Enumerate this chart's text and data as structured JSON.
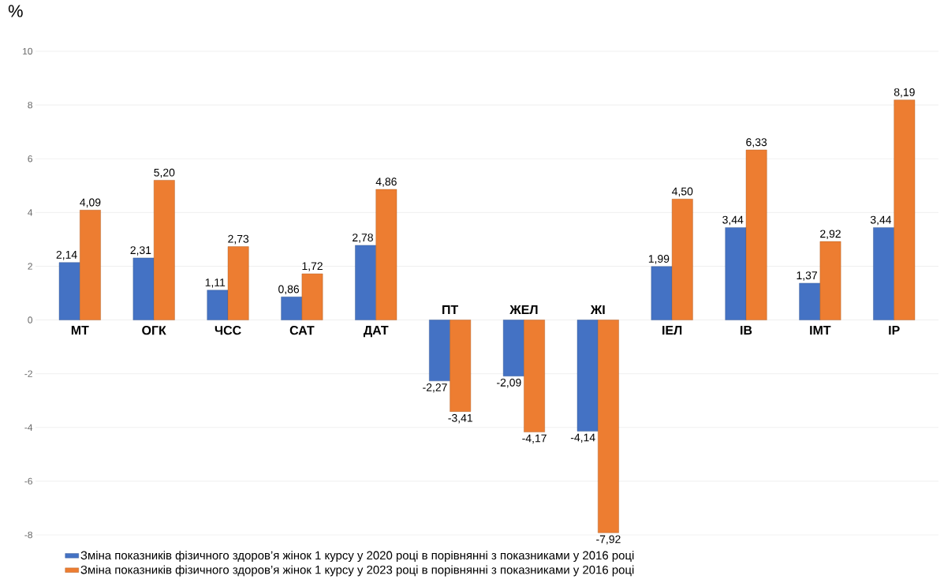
{
  "chart_data": {
    "type": "bar",
    "ylabel": "%",
    "categories": [
      "МТ",
      "ОГК",
      "ЧСС",
      "САТ",
      "ДАТ",
      "ПТ",
      "ЖЕЛ",
      "ЖІ",
      "ІЕЛ",
      "ІВ",
      "ІМТ",
      "ІР"
    ],
    "series": [
      {
        "name": "Зміна показників фізичного здоров’я жінок 1 курсу у 2020 році в порівнянні з показниками у 2016 році",
        "color": "#4472c4",
        "values": [
          2.14,
          2.31,
          1.11,
          0.86,
          2.78,
          -2.27,
          -2.09,
          -4.14,
          1.99,
          3.44,
          1.37,
          3.44
        ],
        "value_labels": [
          "2,14",
          "2,31",
          "1,11",
          "0,86",
          "2,78",
          "-2,27",
          "-2,09",
          "-4,14",
          "1,99",
          "3,44",
          "1,37",
          "3,44"
        ]
      },
      {
        "name": "Зміна показників фізичного здоров’я жінок 1 курсу у 2023 році в порівнянні з показниками у 2016 році",
        "color": "#ed7d31",
        "values": [
          4.09,
          5.2,
          2.73,
          1.72,
          4.86,
          -3.41,
          -4.17,
          -7.92,
          4.5,
          6.33,
          2.92,
          8.19
        ],
        "value_labels": [
          "4,09",
          "5,20",
          "2,73",
          "1,72",
          "4,86",
          "-3,41",
          "-4,17",
          "-7,92",
          "4,50",
          "6,33",
          "2,92",
          "8,19"
        ]
      }
    ],
    "ylim": [
      -8,
      10
    ],
    "yticks": [
      -8,
      -6,
      -4,
      -2,
      0,
      2,
      4,
      6,
      8,
      10
    ],
    "grid": "y",
    "legend": "bottom"
  }
}
